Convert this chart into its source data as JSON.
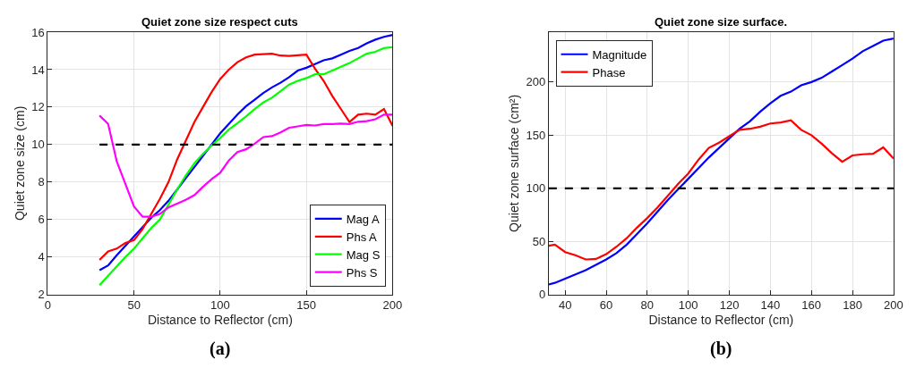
{
  "chart_data": [
    {
      "type": "line",
      "title": "Quiet zone size respect cuts",
      "xlabel": "Distance to Reflector (cm)",
      "ylabel": "Quiet zone size (cm)",
      "annotations": [
        "(a)"
      ],
      "x": [
        30,
        35,
        40,
        45,
        50,
        55,
        60,
        65,
        70,
        75,
        80,
        85,
        90,
        95,
        100,
        105,
        110,
        115,
        120,
        125,
        130,
        135,
        140,
        145,
        150,
        155,
        160,
        165,
        170,
        175,
        180,
        185,
        190,
        195,
        200
      ],
      "xlim": [
        0,
        200
      ],
      "xticks": [
        0,
        50,
        100,
        150,
        200
      ],
      "ylim": [
        2,
        16
      ],
      "yticks": [
        2,
        4,
        6,
        8,
        10,
        12,
        14,
        16
      ],
      "grid": true,
      "legend": "bottom right",
      "line_style": "solid",
      "marker": "none",
      "series": [
        {
          "name": "Mag A",
          "color": "#0000ff",
          "values": [
            3.3,
            3.55,
            4.1,
            4.6,
            5.1,
            5.6,
            6.1,
            6.5,
            7.0,
            7.6,
            8.2,
            8.8,
            9.4,
            10.0,
            10.6,
            11.1,
            11.6,
            12.05,
            12.4,
            12.75,
            13.05,
            13.3,
            13.6,
            13.95,
            14.1,
            14.3,
            14.5,
            14.6,
            14.8,
            15.0,
            15.15,
            15.4,
            15.6,
            15.75,
            15.85
          ]
        },
        {
          "name": "Phs A",
          "color": "#ff0000",
          "values": [
            3.85,
            4.3,
            4.45,
            4.75,
            4.9,
            5.5,
            6.3,
            7.1,
            8.0,
            9.2,
            10.2,
            11.2,
            12.0,
            12.8,
            13.5,
            14.0,
            14.4,
            14.65,
            14.8,
            14.83,
            14.85,
            14.75,
            14.73,
            14.77,
            14.8,
            14.05,
            13.4,
            12.6,
            11.9,
            11.2,
            11.6,
            11.65,
            11.6,
            11.9,
            11.0
          ]
        },
        {
          "name": "Mag S",
          "color": "#00ff00",
          "values": [
            2.5,
            3.0,
            3.5,
            4.0,
            4.45,
            5.0,
            5.55,
            6.0,
            6.8,
            7.6,
            8.35,
            9.0,
            9.5,
            9.95,
            10.35,
            10.8,
            11.15,
            11.5,
            11.9,
            12.25,
            12.5,
            12.85,
            13.2,
            13.4,
            13.55,
            13.75,
            13.75,
            13.95,
            14.15,
            14.35,
            14.6,
            14.85,
            14.95,
            15.15,
            15.2
          ]
        },
        {
          "name": "Phs S",
          "color": "#ff00ff",
          "values": [
            11.55,
            11.1,
            9.1,
            7.9,
            6.7,
            6.15,
            6.15,
            6.3,
            6.65,
            6.85,
            7.05,
            7.3,
            7.75,
            8.15,
            8.5,
            9.15,
            9.6,
            9.75,
            10.05,
            10.4,
            10.45,
            10.65,
            10.9,
            10.97,
            11.05,
            11.02,
            11.1,
            11.1,
            11.12,
            11.1,
            11.22,
            11.25,
            11.35,
            11.6,
            11.6
          ]
        },
        {
          "color": "#000000",
          "line_style": "dashed",
          "x": [
            30,
            200
          ],
          "values": [
            10,
            10
          ]
        }
      ]
    },
    {
      "type": "line",
      "title": "Quiet zone size surface.",
      "xlabel": "Distance to Reflector (cm)",
      "ylabel": "Quiet zone surface (cm²)",
      "annotations": [
        "(b)"
      ],
      "x": [
        32,
        35,
        40,
        45,
        50,
        55,
        60,
        65,
        70,
        75,
        80,
        85,
        90,
        95,
        100,
        105,
        110,
        115,
        120,
        125,
        130,
        135,
        140,
        145,
        150,
        155,
        160,
        165,
        170,
        175,
        180,
        185,
        190,
        195,
        200
      ],
      "xlim": [
        32,
        200
      ],
      "xticks": [
        40,
        60,
        80,
        100,
        120,
        140,
        160,
        180,
        200
      ],
      "ylim": [
        0,
        247
      ],
      "yticks": [
        0,
        50,
        100,
        150,
        200
      ],
      "grid": true,
      "legend": "top left",
      "line_style": "solid",
      "marker": "none",
      "ref_lines": [
        {
          "axis": "y",
          "value": 100,
          "color": "#000000",
          "line_style": "dashed"
        }
      ],
      "series": [
        {
          "name": "Magnitude",
          "color": "#0000ff",
          "values": [
            9.5,
            11,
            15,
            19,
            23,
            28,
            33,
            39,
            47,
            57,
            67,
            78,
            89,
            99,
            109,
            119,
            129,
            138,
            147,
            156,
            163,
            172,
            180,
            187,
            191,
            197,
            200,
            204,
            210,
            216,
            222,
            229,
            234,
            239,
            241
          ]
        },
        {
          "name": "Phase",
          "color": "#ff0000",
          "values": [
            46,
            47,
            40,
            37,
            33,
            33.5,
            38,
            45,
            53,
            63,
            72,
            82,
            93,
            104,
            114,
            127,
            138,
            143,
            149,
            155,
            156,
            158,
            161,
            162,
            164,
            155,
            150,
            142,
            133,
            125,
            131,
            132,
            132.5,
            138.5,
            128
          ]
        }
      ]
    }
  ]
}
